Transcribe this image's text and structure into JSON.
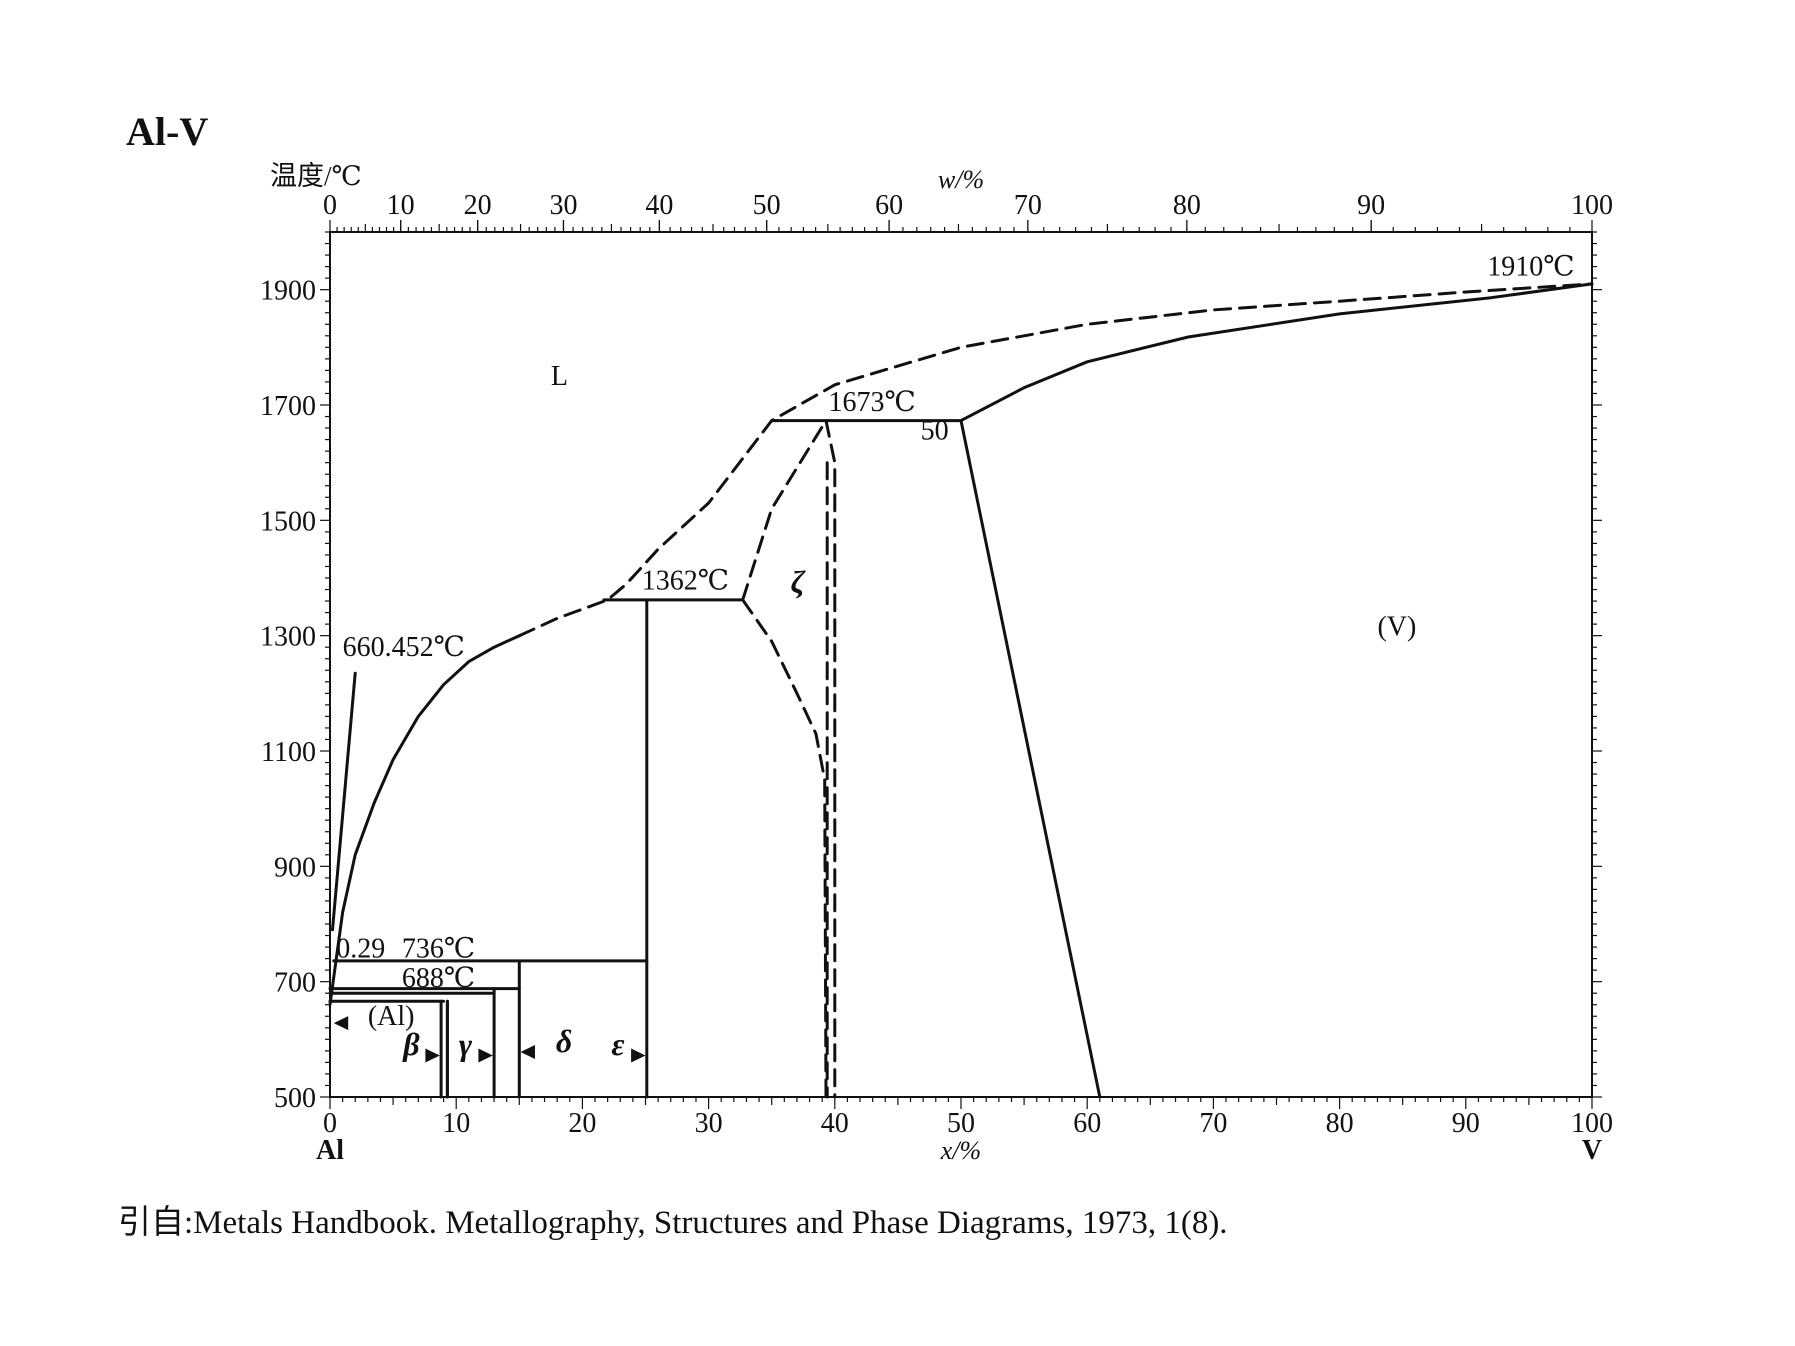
{
  "title": "Al-V",
  "citation": "引自:Metals Handbook. Metallography, Structures and Phase Diagrams, 1973, 1(8).",
  "chart_data": {
    "type": "phase_diagram",
    "system": "Al-V",
    "y_axis": {
      "label": "温度/℃",
      "range": [
        500,
        2000
      ],
      "ticks": [
        500,
        700,
        900,
        1100,
        1300,
        1500,
        1700,
        1900
      ]
    },
    "x_axis_bottom": {
      "label": "x/%",
      "range": [
        0,
        100
      ],
      "ticks": [
        0,
        10,
        20,
        30,
        40,
        50,
        60,
        70,
        80,
        90,
        100
      ],
      "left_element": "Al",
      "right_element": "V"
    },
    "x_axis_top": {
      "label": "w/%",
      "ticks": [
        {
          "label": "0",
          "x_at": 0
        },
        {
          "label": "10",
          "x_at": 5.6
        },
        {
          "label": "20",
          "x_at": 11.7
        },
        {
          "label": "30",
          "x_at": 18.5
        },
        {
          "label": "40",
          "x_at": 26.1
        },
        {
          "label": "50",
          "x_at": 34.6
        },
        {
          "label": "60",
          "x_at": 44.3
        },
        {
          "label": "70",
          "x_at": 55.3
        },
        {
          "label": "80",
          "x_at": 67.9
        },
        {
          "label": "90",
          "x_at": 82.5
        },
        {
          "label": "100",
          "x_at": 100
        }
      ]
    },
    "phase_labels": [
      {
        "text": "L",
        "x": 17.5,
        "T": 1735
      },
      {
        "text": "ζ",
        "x": 36.5,
        "T": 1375
      },
      {
        "text": "(V)",
        "x": 83,
        "T": 1300
      },
      {
        "text": "(Al)",
        "x": 3.0,
        "T": 625
      },
      {
        "text": "β",
        "x": 5.8,
        "T": 573
      },
      {
        "text": "γ",
        "x": 10.2,
        "T": 573
      },
      {
        "text": "δ",
        "x": 17.9,
        "T": 578
      },
      {
        "text": "ε",
        "x": 22.3,
        "T": 573
      }
    ],
    "annotations": [
      {
        "text": "660.452℃",
        "x": 1.0,
        "T": 1265
      },
      {
        "text": "1362℃",
        "x": 24.7,
        "T": 1380
      },
      {
        "text": "1673℃",
        "x": 39.5,
        "T": 1690
      },
      {
        "text": "50",
        "x": 46.8,
        "T": 1640
      },
      {
        "text": "1910℃",
        "x": 91.7,
        "T": 1925
      },
      {
        "text": "0.29",
        "x": 0.5,
        "T": 742
      },
      {
        "text": "736℃",
        "x": 5.7,
        "T": 742
      },
      {
        "text": "688℃",
        "x": 5.7,
        "T": 691
      }
    ],
    "invariants_C": [
      660.452,
      736,
      688,
      1362,
      1673,
      1910
    ],
    "lines": {
      "liquidus_solid": [
        [
          0,
          660
        ],
        [
          0.5,
          740
        ],
        [
          1,
          820
        ],
        [
          2,
          920
        ],
        [
          3.5,
          1010
        ],
        [
          5,
          1085
        ],
        [
          7,
          1160
        ],
        [
          9,
          1215
        ],
        [
          11,
          1255
        ],
        [
          13,
          1280
        ],
        [
          15,
          1300
        ]
      ],
      "liquidus_dashed": [
        [
          15,
          1300
        ],
        [
          18,
          1330
        ],
        [
          22,
          1362
        ],
        [
          23.5,
          1390
        ],
        [
          26,
          1450
        ],
        [
          30,
          1530
        ],
        [
          35,
          1673
        ],
        [
          40,
          1735
        ],
        [
          50,
          1800
        ],
        [
          60,
          1840
        ],
        [
          70,
          1865
        ],
        [
          80,
          1880
        ],
        [
          90,
          1896
        ],
        [
          100,
          1910
        ]
      ],
      "solidus_V_solid": [
        [
          50,
          1673
        ],
        [
          55,
          1730
        ],
        [
          60,
          1775
        ],
        [
          68,
          1818
        ],
        [
          80,
          1858
        ],
        [
          92,
          1886
        ],
        [
          100,
          1910
        ]
      ],
      "solvus_V_solid": [
        [
          50,
          1673
        ],
        [
          61,
          500
        ]
      ],
      "Al_side_solid": [
        [
          0.2,
          790
        ],
        [
          2.0,
          1235
        ]
      ],
      "zeta_left_dashed": [
        [
          32.7,
          1362
        ],
        [
          35,
          1520
        ],
        [
          39.3,
          1673
        ]
      ],
      "zeta_right_dashed": [
        [
          39.3,
          1673
        ],
        [
          40,
          1600
        ],
        [
          40,
          500
        ]
      ],
      "zeta_lower_dashed": [
        [
          32.7,
          1362
        ],
        [
          35,
          1290
        ],
        [
          37,
          1200
        ],
        [
          38.5,
          1130
        ],
        [
          39.2,
          1050
        ],
        [
          39.3,
          500
        ]
      ],
      "peritectic_1362": [
        [
          21.7,
          1362
        ],
        [
          32.7,
          1362
        ]
      ],
      "peritectic_1673": [
        [
          35,
          1673
        ],
        [
          50,
          1673
        ]
      ],
      "eps_vertical": [
        [
          25.1,
          500
        ],
        [
          25.1,
          1362
        ]
      ],
      "eutectic_736": [
        [
          0.29,
          736
        ],
        [
          25.1,
          736
        ]
      ],
      "eutectic_688": [
        [
          0,
          688
        ],
        [
          15,
          688
        ]
      ],
      "delta_vertical": [
        [
          15,
          500
        ],
        [
          15,
          736
        ]
      ],
      "gamma_right": [
        [
          13,
          500
        ],
        [
          13,
          688
        ]
      ],
      "line_680": [
        [
          0,
          680
        ],
        [
          13,
          680
        ]
      ],
      "line_666": [
        [
          0,
          666
        ],
        [
          9,
          666
        ]
      ],
      "beta_left": [
        [
          8.8,
          500
        ],
        [
          8.8,
          666
        ]
      ],
      "beta_right": [
        [
          9.3,
          500
        ],
        [
          9.3,
          666
        ]
      ],
      "gamma_left": [
        [
          9.3,
          500
        ],
        [
          9.3,
          666
        ]
      ]
    }
  }
}
